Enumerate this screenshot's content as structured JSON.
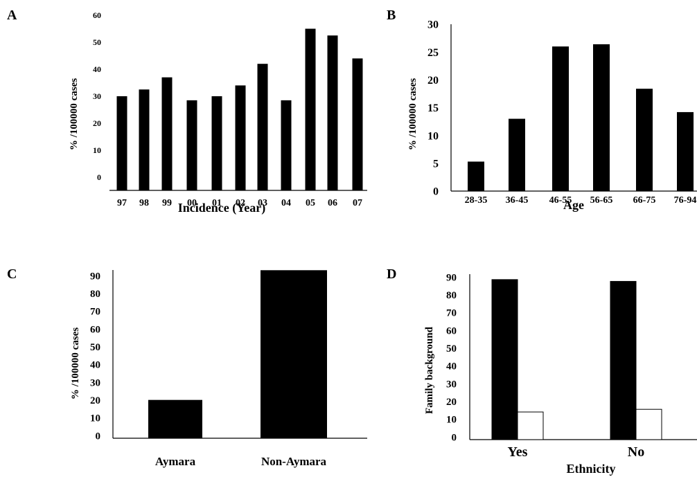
{
  "panels": [
    {
      "letter": "A"
    },
    {
      "letter": "B"
    },
    {
      "letter": "C"
    },
    {
      "letter": "D"
    }
  ],
  "chart_data": [
    {
      "type": "bar",
      "panel": "A",
      "categories": [
        "97",
        "98",
        "99",
        "00",
        "01",
        "02",
        "03",
        "04",
        "05",
        "06",
        "07"
      ],
      "values": [
        30,
        32.5,
        37,
        28.5,
        30,
        34,
        42,
        28.5,
        55,
        52.5,
        44
      ],
      "xlabel": "Incidence (Year)",
      "ylabel": "% /100000 cases",
      "ylim": [
        0,
        60
      ],
      "yticks": [
        0,
        10,
        20,
        30,
        40,
        50,
        60
      ],
      "fill": "#000000",
      "grid": false
    },
    {
      "type": "bar",
      "panel": "B",
      "categories": [
        "28-35",
        "36-45",
        "46-55",
        "56-65",
        "66-75",
        "76-94"
      ],
      "values": [
        5.3,
        13,
        26,
        26.4,
        18.4,
        14.2
      ],
      "xlabel": "Age",
      "ylabel": "% /100000 cases",
      "ylim": [
        0,
        30
      ],
      "yticks": [
        0,
        5,
        10,
        15,
        20,
        25,
        30
      ],
      "fill": "#000000",
      "grid": false
    },
    {
      "type": "bar",
      "panel": "C",
      "categories": [
        "Aymara",
        "Non-Aymara"
      ],
      "values": [
        20,
        93
      ],
      "xlabel": "",
      "ylabel": "% /100000 cases",
      "ylim": [
        0,
        90
      ],
      "yticks": [
        0,
        10,
        20,
        30,
        40,
        50,
        60,
        70,
        80,
        90
      ],
      "fill": "#000000",
      "grid": false
    },
    {
      "type": "bar",
      "panel": "D",
      "categories": [
        "Yes",
        "No"
      ],
      "series": [
        {
          "values": [
            88.5,
            87.5
          ],
          "color": "#000000"
        },
        {
          "values": [
            14,
            15.5
          ],
          "color": "#ffffff"
        }
      ],
      "xlabel": "Ethnicity",
      "ylabel": "Family background",
      "ylim": [
        0,
        90
      ],
      "yticks": [
        0,
        10,
        20,
        30,
        40,
        50,
        60,
        70,
        80,
        90
      ],
      "grid": false
    }
  ]
}
